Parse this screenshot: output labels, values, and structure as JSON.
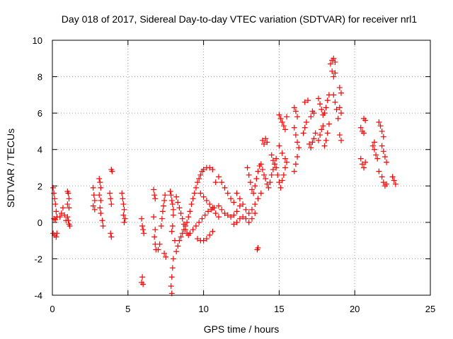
{
  "chart_data": {
    "type": "scatter",
    "title": "Day 018 of 2017, Sidereal Day-to-day VTEC variation (SDTVAR) for receiver nrl1",
    "xlabel": "GPS time / hours",
    "ylabel": "SDTVAR / TECUs",
    "xlim": [
      0,
      25
    ],
    "ylim": [
      -4,
      10
    ],
    "xticks": [
      0,
      5,
      10,
      15,
      20,
      25
    ],
    "yticks": [
      -4,
      -2,
      0,
      2,
      4,
      6,
      8,
      10
    ],
    "grid": true,
    "marker": "+",
    "series": [
      {
        "name": "SDTVAR",
        "color": "#ff0000",
        "points": [
          [
            0.05,
            1.9
          ],
          [
            0.1,
            1.6
          ],
          [
            0.15,
            1.3
          ],
          [
            0.2,
            1.0
          ],
          [
            0.25,
            0.6
          ],
          [
            0.3,
            0.3
          ],
          [
            0.1,
            0.2
          ],
          [
            0.2,
            0.15
          ],
          [
            0.05,
            -0.6
          ],
          [
            0.15,
            -0.7
          ],
          [
            0.25,
            -0.8
          ],
          [
            0.3,
            -0.6
          ],
          [
            0.5,
            0.3
          ],
          [
            0.6,
            0.5
          ],
          [
            0.7,
            0.8
          ],
          [
            0.8,
            0.4
          ],
          [
            0.9,
            0.1
          ],
          [
            1.0,
            1.7
          ],
          [
            1.05,
            1.6
          ],
          [
            1.1,
            1.3
          ],
          [
            1.0,
            1.0
          ],
          [
            1.1,
            0.8
          ],
          [
            1.0,
            0.3
          ],
          [
            1.05,
            0.1
          ],
          [
            1.1,
            -0.1
          ],
          [
            1.15,
            -0.2
          ],
          [
            2.7,
            1.9
          ],
          [
            2.75,
            1.5
          ],
          [
            2.8,
            1.2
          ],
          [
            2.7,
            0.9
          ],
          [
            2.8,
            0.7
          ],
          [
            3.1,
            2.4
          ],
          [
            3.15,
            2.2
          ],
          [
            3.2,
            1.9
          ],
          [
            3.1,
            1.5
          ],
          [
            3.2,
            1.2
          ],
          [
            3.15,
            0.8
          ],
          [
            3.2,
            0.5
          ],
          [
            3.3,
            0.1
          ],
          [
            3.35,
            -0.2
          ],
          [
            3.9,
            2.9
          ],
          [
            3.95,
            2.8
          ],
          [
            3.8,
            1.6
          ],
          [
            3.85,
            1.3
          ],
          [
            3.9,
            1.0
          ],
          [
            3.85,
            -0.6
          ],
          [
            3.9,
            -0.8
          ],
          [
            4.6,
            1.6
          ],
          [
            4.65,
            1.3
          ],
          [
            4.7,
            1.0
          ],
          [
            4.75,
            0.7
          ],
          [
            4.7,
            0.4
          ],
          [
            4.8,
            0.2
          ],
          [
            4.75,
            0.0
          ],
          [
            5.9,
            0.2
          ],
          [
            5.95,
            -0.2
          ],
          [
            6.0,
            -0.4
          ],
          [
            6.05,
            -0.6
          ],
          [
            5.95,
            -3.0
          ],
          [
            5.9,
            -3.3
          ],
          [
            6.0,
            -3.4
          ],
          [
            6.7,
            1.8
          ],
          [
            6.75,
            1.5
          ],
          [
            6.8,
            1.3
          ],
          [
            6.7,
            0.3
          ],
          [
            6.8,
            -0.4
          ],
          [
            6.75,
            -0.8
          ],
          [
            6.8,
            -1.2
          ],
          [
            6.85,
            -1.5
          ],
          [
            7.0,
            -1.5
          ],
          [
            7.1,
            -1.2
          ],
          [
            7.2,
            -0.2
          ],
          [
            7.25,
            0.2
          ],
          [
            7.3,
            0.6
          ],
          [
            7.35,
            0.9
          ],
          [
            7.4,
            1.2
          ],
          [
            7.45,
            1.5
          ],
          [
            7.4,
            -1.7
          ],
          [
            7.5,
            -1.9
          ],
          [
            7.8,
            1.7
          ],
          [
            7.85,
            1.5
          ],
          [
            7.9,
            1.2
          ],
          [
            7.95,
            1.0
          ],
          [
            8.0,
            0.7
          ],
          [
            8.0,
            0.4
          ],
          [
            7.9,
            -0.5
          ],
          [
            7.95,
            -0.2
          ],
          [
            8.1,
            -1.0
          ],
          [
            8.0,
            -2.0
          ],
          [
            7.95,
            -2.5
          ],
          [
            7.9,
            -3.0
          ],
          [
            7.85,
            -3.5
          ],
          [
            7.9,
            -3.9
          ],
          [
            8.2,
            1.4
          ],
          [
            8.3,
            1.1
          ],
          [
            8.4,
            0.8
          ],
          [
            8.5,
            0.5
          ],
          [
            8.6,
            0.2
          ],
          [
            8.7,
            -0.1
          ],
          [
            8.8,
            -0.4
          ],
          [
            8.9,
            -0.6
          ],
          [
            9.0,
            -0.7
          ],
          [
            8.2,
            -1.6
          ],
          [
            8.3,
            -1.3
          ],
          [
            8.4,
            -1.0
          ],
          [
            8.5,
            -0.8
          ],
          [
            8.6,
            -0.6
          ],
          [
            8.7,
            -0.4
          ],
          [
            8.8,
            -0.2
          ],
          [
            8.9,
            0.0
          ],
          [
            9.0,
            0.3
          ],
          [
            9.1,
            0.6
          ],
          [
            9.2,
            1.0
          ],
          [
            9.3,
            1.3
          ],
          [
            9.4,
            1.6
          ],
          [
            9.5,
            1.9
          ],
          [
            9.6,
            2.2
          ],
          [
            9.7,
            2.4
          ],
          [
            9.8,
            2.6
          ],
          [
            9.9,
            2.8
          ],
          [
            10.0,
            2.9
          ],
          [
            10.2,
            3.0
          ],
          [
            10.4,
            3.0
          ],
          [
            10.6,
            2.9
          ],
          [
            9.1,
            -0.6
          ],
          [
            9.3,
            -0.4
          ],
          [
            9.5,
            -0.2
          ],
          [
            9.7,
            0.0
          ],
          [
            9.9,
            0.2
          ],
          [
            10.1,
            0.4
          ],
          [
            10.3,
            0.6
          ],
          [
            10.5,
            0.7
          ],
          [
            10.7,
            0.8
          ],
          [
            9.6,
            -0.9
          ],
          [
            9.8,
            -1.0
          ],
          [
            10.0,
            -1.0
          ],
          [
            10.2,
            -0.9
          ],
          [
            10.4,
            -0.7
          ],
          [
            10.6,
            -0.5
          ],
          [
            9.8,
            1.6
          ],
          [
            10.0,
            1.4
          ],
          [
            10.2,
            1.2
          ],
          [
            10.4,
            1.0
          ],
          [
            10.6,
            0.8
          ],
          [
            10.8,
            0.5
          ],
          [
            11.0,
            0.3
          ],
          [
            10.8,
            2.2
          ],
          [
            11.0,
            2.5
          ],
          [
            11.2,
            2.2
          ],
          [
            11.4,
            1.9
          ],
          [
            11.6,
            1.6
          ],
          [
            11.8,
            1.3
          ],
          [
            12.0,
            1.1
          ],
          [
            11.0,
            0.9
          ],
          [
            11.2,
            0.7
          ],
          [
            11.4,
            0.5
          ],
          [
            11.6,
            0.4
          ],
          [
            11.8,
            0.3
          ],
          [
            12.0,
            0.4
          ],
          [
            12.2,
            0.6
          ],
          [
            12.4,
            0.9
          ],
          [
            12.0,
            -0.1
          ],
          [
            12.2,
            0.0
          ],
          [
            12.4,
            0.2
          ],
          [
            12.6,
            0.3
          ],
          [
            12.8,
            0.2
          ],
          [
            13.0,
            0.0
          ],
          [
            13.2,
            0.2
          ],
          [
            13.4,
            0.5
          ],
          [
            12.2,
            1.6
          ],
          [
            12.4,
            1.3
          ],
          [
            12.6,
            1.0
          ],
          [
            12.8,
            0.7
          ],
          [
            13.0,
            0.5
          ],
          [
            13.2,
            0.7
          ],
          [
            13.4,
            1.0
          ],
          [
            13.6,
            1.3
          ],
          [
            13.8,
            1.6
          ],
          [
            12.9,
            3.0
          ],
          [
            13.0,
            2.6
          ],
          [
            13.1,
            2.2
          ],
          [
            13.2,
            1.8
          ],
          [
            13.3,
            1.6
          ],
          [
            13.4,
            2.0
          ],
          [
            13.5,
            2.4
          ],
          [
            13.6,
            2.8
          ],
          [
            13.7,
            3.1
          ],
          [
            13.8,
            3.2
          ],
          [
            13.6,
            -1.4
          ],
          [
            13.55,
            -1.5
          ],
          [
            13.9,
            2.9
          ],
          [
            14.0,
            2.6
          ],
          [
            14.1,
            2.4
          ],
          [
            14.2,
            2.1
          ],
          [
            14.3,
            1.9
          ],
          [
            14.4,
            2.2
          ],
          [
            14.5,
            2.6
          ],
          [
            14.6,
            2.9
          ],
          [
            14.7,
            3.2
          ],
          [
            14.8,
            3.5
          ],
          [
            13.9,
            4.5
          ],
          [
            14.0,
            4.3
          ],
          [
            14.1,
            4.6
          ],
          [
            14.2,
            4.4
          ],
          [
            14.5,
            3.7
          ],
          [
            14.6,
            3.4
          ],
          [
            14.7,
            3.2
          ],
          [
            14.8,
            3.0
          ],
          [
            14.9,
            2.6
          ],
          [
            15.0,
            2.2
          ],
          [
            15.1,
            1.9
          ],
          [
            15.2,
            2.3
          ],
          [
            15.3,
            2.6
          ],
          [
            15.4,
            3.0
          ],
          [
            15.5,
            3.3
          ],
          [
            15.0,
            5.9
          ],
          [
            15.1,
            5.7
          ],
          [
            15.2,
            5.5
          ],
          [
            15.3,
            5.3
          ],
          [
            15.4,
            5.1
          ],
          [
            15.5,
            5.8
          ],
          [
            15.0,
            4.2
          ],
          [
            15.2,
            3.8
          ],
          [
            15.4,
            3.5
          ],
          [
            16.0,
            6.3
          ],
          [
            16.1,
            6.1
          ],
          [
            16.2,
            5.8
          ],
          [
            16.0,
            5.2
          ],
          [
            16.1,
            4.8
          ],
          [
            16.2,
            4.4
          ],
          [
            16.3,
            4.1
          ],
          [
            16.0,
            2.8
          ],
          [
            16.1,
            3.2
          ],
          [
            16.2,
            3.6
          ],
          [
            16.6,
            4.9
          ],
          [
            16.7,
            5.2
          ],
          [
            16.8,
            5.5
          ],
          [
            16.7,
            6.6
          ],
          [
            16.9,
            6.7
          ],
          [
            17.0,
            4.3
          ],
          [
            17.1,
            4.1
          ],
          [
            17.2,
            4.4
          ],
          [
            17.3,
            4.6
          ],
          [
            17.4,
            4.9
          ],
          [
            17.1,
            5.8
          ],
          [
            17.2,
            6.1
          ],
          [
            17.3,
            6.0
          ],
          [
            17.6,
            4.5
          ],
          [
            17.7,
            4.8
          ],
          [
            17.8,
            5.1
          ],
          [
            17.9,
            5.3
          ],
          [
            17.6,
            6.8
          ],
          [
            17.7,
            6.5
          ],
          [
            17.8,
            6.2
          ],
          [
            17.9,
            5.9
          ],
          [
            18.0,
            4.2
          ],
          [
            18.1,
            4.5
          ],
          [
            18.2,
            4.9
          ],
          [
            18.3,
            5.4
          ],
          [
            18.0,
            6.0
          ],
          [
            18.1,
            6.3
          ],
          [
            18.2,
            6.7
          ],
          [
            18.3,
            7.0
          ],
          [
            18.4,
            8.7
          ],
          [
            18.5,
            8.9
          ],
          [
            18.6,
            9.0
          ],
          [
            18.7,
            8.8
          ],
          [
            18.5,
            8.3
          ],
          [
            18.6,
            8.0
          ],
          [
            18.7,
            8.2
          ],
          [
            18.6,
            7.0
          ],
          [
            18.7,
            6.6
          ],
          [
            18.8,
            6.2
          ],
          [
            18.9,
            5.7
          ],
          [
            19.0,
            7.4
          ],
          [
            19.1,
            7.1
          ],
          [
            19.0,
            6.3
          ],
          [
            19.1,
            6.0
          ],
          [
            19.0,
            4.8
          ],
          [
            19.1,
            4.5
          ],
          [
            20.4,
            3.5
          ],
          [
            20.5,
            3.2
          ],
          [
            20.6,
            3.0
          ],
          [
            20.7,
            3.3
          ],
          [
            20.4,
            5.2
          ],
          [
            20.5,
            5.0
          ],
          [
            20.6,
            4.9
          ],
          [
            20.6,
            5.7
          ],
          [
            20.7,
            5.6
          ],
          [
            21.2,
            4.2
          ],
          [
            21.3,
            4.0
          ],
          [
            21.4,
            3.7
          ],
          [
            21.5,
            3.5
          ],
          [
            21.6,
            2.8
          ],
          [
            21.3,
            4.4
          ],
          [
            21.6,
            5.5
          ],
          [
            21.7,
            5.3
          ],
          [
            21.8,
            5.0
          ],
          [
            21.9,
            4.7
          ],
          [
            21.8,
            4.2
          ],
          [
            21.9,
            3.9
          ],
          [
            22.0,
            3.6
          ],
          [
            22.1,
            3.3
          ],
          [
            21.8,
            2.5
          ],
          [
            21.9,
            2.2
          ],
          [
            22.0,
            2.0
          ],
          [
            22.1,
            2.1
          ],
          [
            22.5,
            2.5
          ],
          [
            22.6,
            2.3
          ],
          [
            22.7,
            2.1
          ]
        ]
      }
    ]
  }
}
